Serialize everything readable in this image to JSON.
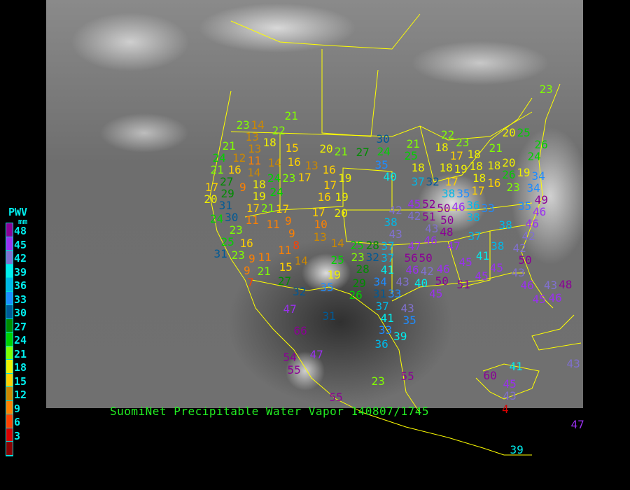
{
  "title": "SuomiNet Precipitable Water Vapor 140807/1745",
  "legend": {
    "title": "PWV",
    "unit": "mm",
    "ticks": [
      "48",
      "45",
      "42",
      "39",
      "36",
      "33",
      "30",
      "27",
      "24",
      "21",
      "18",
      "15",
      "12",
      "9",
      "6",
      "3"
    ],
    "colors": [
      "#8b0096",
      "#9a30f0",
      "#8070d0",
      "#00eeee",
      "#00b8e8",
      "#1e8cff",
      "#005a96",
      "#008c00",
      "#00d000",
      "#80ff00",
      "#f0f000",
      "#ffd000",
      "#cc8800",
      "#ff8000",
      "#ff4000",
      "#d80000",
      "#8b0000"
    ]
  },
  "stations": [
    "23",
    "14",
    "13",
    "18",
    "22",
    "21",
    "13",
    "15",
    "20",
    "21",
    "27",
    "24",
    "12",
    "11",
    "14",
    "16",
    "14",
    "21",
    "16",
    "18",
    "24",
    "23",
    "17",
    "13",
    "16",
    "19",
    "17",
    "27",
    "9",
    "19",
    "24",
    "17",
    "16",
    "19",
    "20",
    "29",
    "31",
    "17",
    "21",
    "17",
    "17",
    "20",
    "24",
    "30",
    "11",
    "11",
    "9",
    "10",
    "23",
    "25",
    "9",
    "13",
    "8",
    "31",
    "16",
    "14",
    "25",
    "28",
    "11",
    "23",
    "9",
    "11",
    "23",
    "32",
    "37",
    "25",
    "15",
    "14",
    "28",
    "9",
    "21",
    "19",
    "34",
    "7",
    "27",
    "32",
    "35",
    "29",
    "31",
    "30",
    "24",
    "21",
    "25",
    "18",
    "22",
    "23",
    "17",
    "18",
    "21",
    "20",
    "25",
    "26",
    "24",
    "35",
    "40",
    "18",
    "18",
    "19",
    "18",
    "18",
    "20",
    "18",
    "26",
    "19",
    "34",
    "37",
    "32",
    "17",
    "16",
    "23",
    "34",
    "17",
    "38",
    "35",
    "45",
    "52",
    "50",
    "46",
    "36",
    "33",
    "35",
    "49",
    "42",
    "42",
    "51",
    "50",
    "38",
    "46",
    "46",
    "38",
    "43",
    "48",
    "38",
    "43",
    "46",
    "37",
    "42",
    "47",
    "47",
    "38",
    "42",
    "37",
    "41",
    "56",
    "50",
    "41",
    "45",
    "50",
    "46",
    "42",
    "46",
    "45",
    "43",
    "43",
    "40",
    "50",
    "51",
    "45",
    "46",
    "43",
    "48",
    "33",
    "45",
    "45",
    "46",
    "21",
    "47",
    "66",
    "31",
    "47",
    "54",
    "55",
    "55",
    "37",
    "41",
    "33",
    "43",
    "35",
    "39",
    "36",
    "26",
    "23",
    "55",
    "60",
    "41",
    "45",
    "43",
    "4",
    "39",
    "47",
    "43",
    "23"
  ]
}
